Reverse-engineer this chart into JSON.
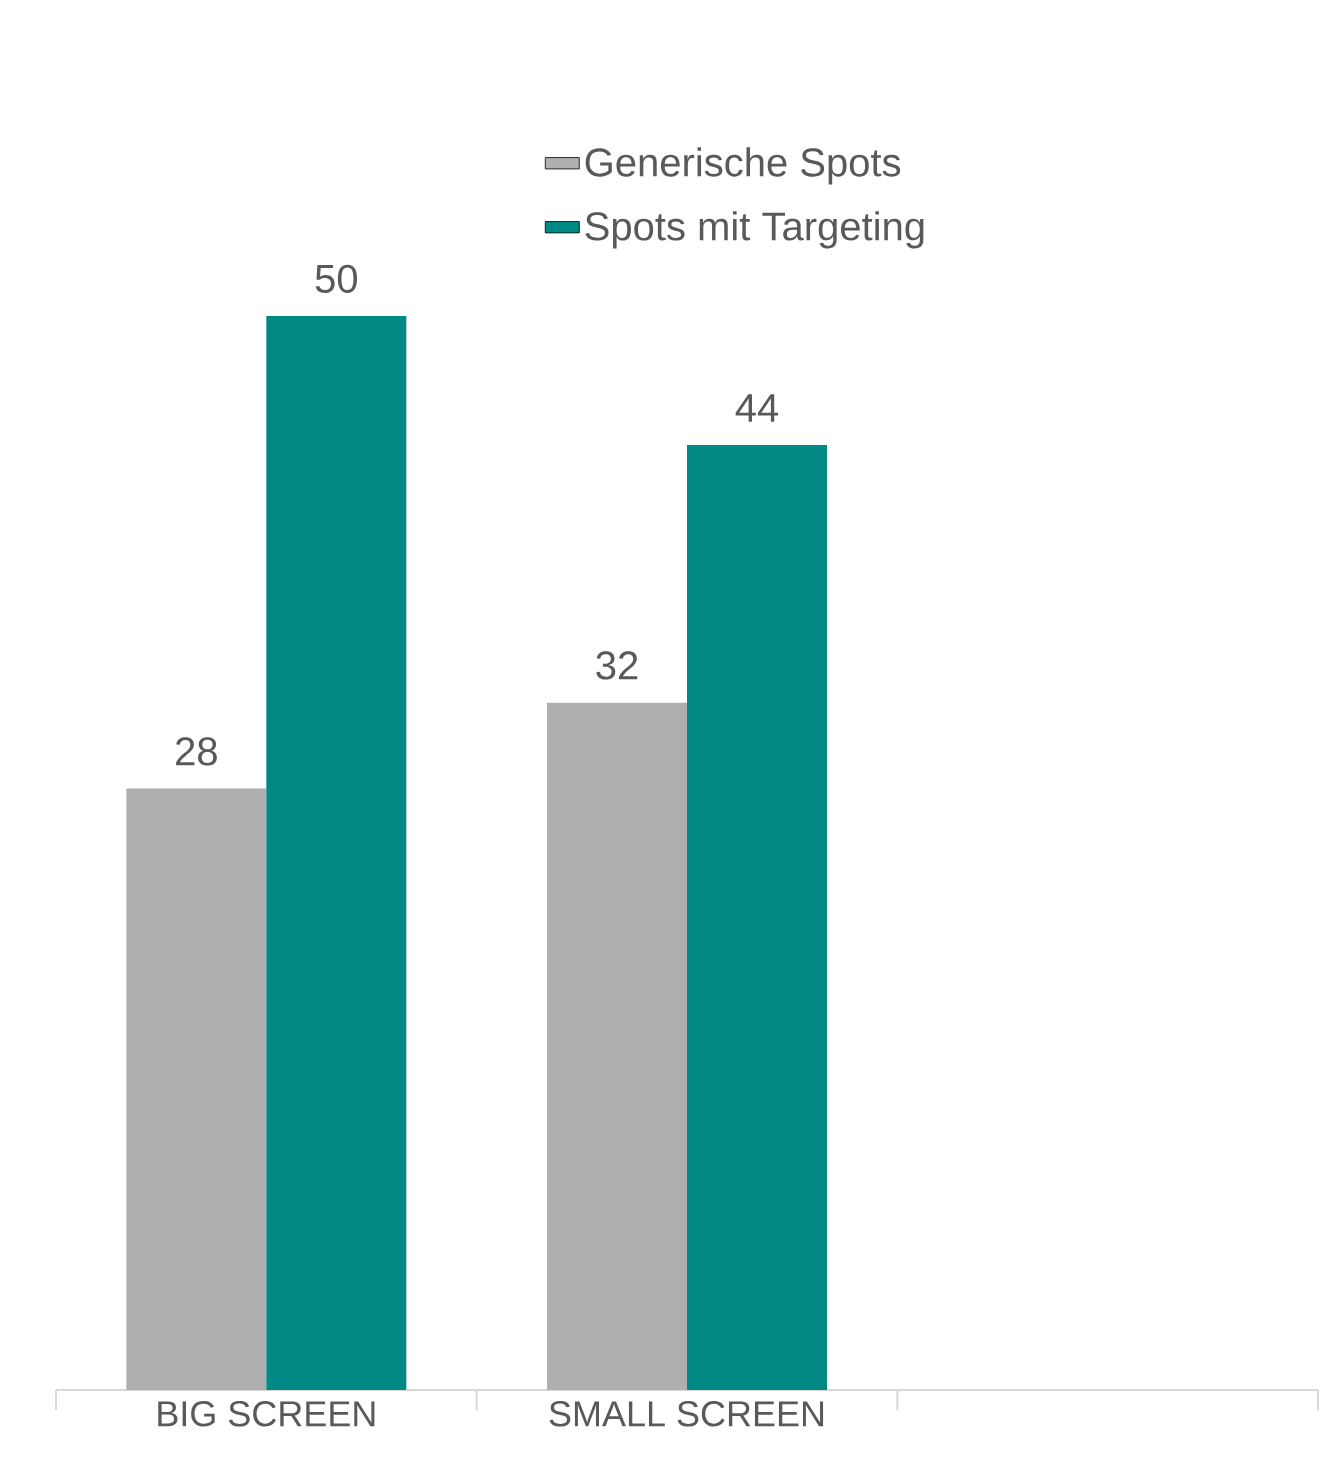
{
  "chart_data": {
    "type": "bar",
    "categories": [
      "BIG SCREEN",
      "SMALL SCREEN",
      null
    ],
    "series": [
      {
        "name": "Generische Spots",
        "color": "#afafaf",
        "values": [
          28,
          32,
          null
        ]
      },
      {
        "name": "Spots mit Targeting",
        "color": "#008985",
        "values": [
          50,
          44,
          null
        ]
      }
    ],
    "data_labels": true,
    "legend": "top"
  }
}
